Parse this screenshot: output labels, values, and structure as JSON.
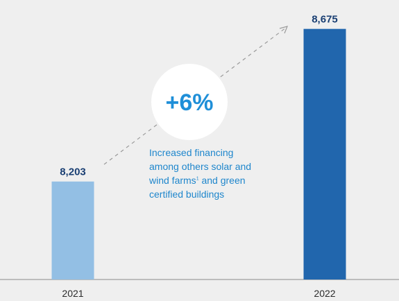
{
  "chart_data": {
    "type": "bar",
    "categories": [
      "2021",
      "2022"
    ],
    "values": [
      8203,
      8675
    ],
    "value_labels": [
      "8,203",
      "8,675"
    ],
    "bar_colors": [
      "#93bfe4",
      "#2166ad"
    ],
    "ylim": [
      7900,
      8700
    ],
    "grid": false,
    "baseline_color": "#8a8a8a",
    "annotation": {
      "badge": "+6%",
      "badge_color": "#1f8fd8",
      "text_before_sup": "Increased financing among others solar and wind farms",
      "sup": "1",
      "text_after_sup": " and green certified buildings",
      "text_color": "#1e86cc"
    }
  }
}
